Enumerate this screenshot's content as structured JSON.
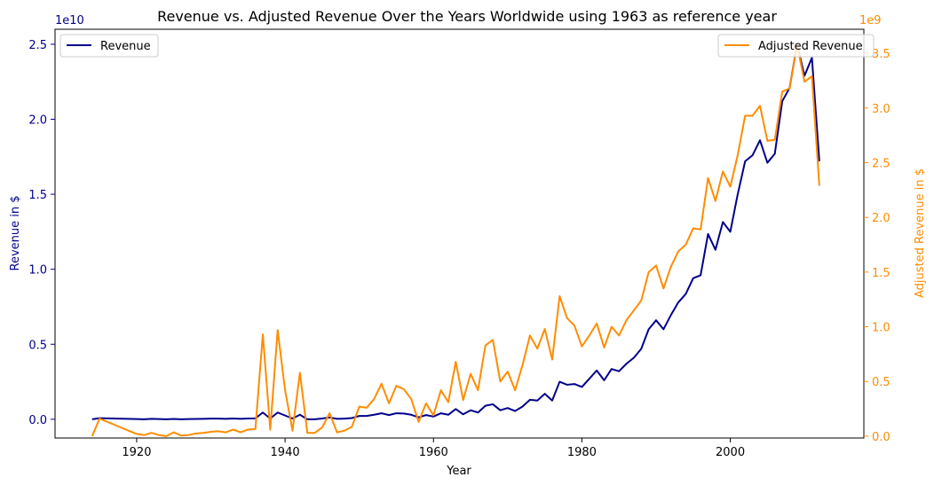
{
  "chart_data": {
    "type": "line",
    "title": "Revenue vs. Adjusted Revenue Over the Years Worldwide using 1963 as reference year",
    "xlabel": "Year",
    "ylabel_left": "Revenue in $",
    "ylabel_right": "Adjusted Revenue in $",
    "left_axis_offset": "1e10",
    "right_axis_offset": "1e9",
    "xlim": [
      1909,
      2018
    ],
    "ylim_left": [
      -0.125,
      2.6
    ],
    "ylim_right": [
      -0.017,
      3.72
    ],
    "x_ticks": [
      "1920",
      "1940",
      "1960",
      "1980",
      "2000"
    ],
    "y_ticks_left": [
      "0.0",
      "0.5",
      "1.0",
      "1.5",
      "2.0",
      "2.5"
    ],
    "y_ticks_right": [
      "0.0",
      "0.5",
      "1.0",
      "1.5",
      "2.0",
      "2.5",
      "3.0",
      "3.5"
    ],
    "grid": false,
    "colors": {
      "revenue": "#00008b",
      "adjusted": "#ff8c00",
      "axis": "#000000"
    },
    "legend": {
      "left": {
        "position": "upper-left",
        "label": "Revenue"
      },
      "right": {
        "position": "upper-right",
        "label": "Adjusted Revenue"
      }
    },
    "series": [
      {
        "name": "Revenue",
        "axis": "left",
        "x": [
          1914,
          1915,
          1920,
          1921,
          1922,
          1923,
          1924,
          1925,
          1926,
          1927,
          1928,
          1929,
          1930,
          1931,
          1932,
          1933,
          1934,
          1935,
          1936,
          1937,
          1938,
          1939,
          1940,
          1941,
          1942,
          1943,
          1944,
          1945,
          1946,
          1947,
          1948,
          1949,
          1950,
          1951,
          1952,
          1953,
          1954,
          1955,
          1956,
          1957,
          1958,
          1959,
          1960,
          1961,
          1962,
          1963,
          1964,
          1965,
          1966,
          1967,
          1968,
          1969,
          1970,
          1971,
          1972,
          1973,
          1974,
          1975,
          1976,
          1977,
          1978,
          1979,
          1980,
          1981,
          1982,
          1983,
          1984,
          1985,
          1986,
          1987,
          1988,
          1989,
          1990,
          1991,
          1992,
          1993,
          1994,
          1995,
          1996,
          1997,
          1998,
          1999,
          2000,
          2001,
          2002,
          2003,
          2004,
          2005,
          2006,
          2007,
          2008,
          2009,
          2010,
          2011,
          2012
        ],
        "values": [
          0.0,
          0.007,
          0.001,
          0.0,
          0.003,
          0.001,
          0.0,
          0.002,
          0.0,
          0.001,
          0.002,
          0.003,
          0.004,
          0.004,
          0.003,
          0.005,
          0.003,
          0.005,
          0.006,
          0.045,
          0.005,
          0.045,
          0.025,
          0.005,
          0.03,
          0.0,
          0.0,
          0.005,
          0.012,
          0.003,
          0.004,
          0.008,
          0.022,
          0.022,
          0.03,
          0.04,
          0.028,
          0.04,
          0.038,
          0.03,
          0.013,
          0.028,
          0.018,
          0.04,
          0.03,
          0.068,
          0.033,
          0.06,
          0.045,
          0.09,
          0.1,
          0.06,
          0.075,
          0.055,
          0.085,
          0.13,
          0.125,
          0.17,
          0.125,
          0.25,
          0.23,
          0.235,
          0.215,
          0.27,
          0.325,
          0.26,
          0.335,
          0.32,
          0.37,
          0.41,
          0.47,
          0.6,
          0.66,
          0.6,
          0.695,
          0.78,
          0.835,
          0.94,
          0.96,
          1.235,
          1.13,
          1.315,
          1.25,
          1.5,
          1.72,
          1.76,
          1.86,
          1.71,
          1.77,
          2.12,
          2.21,
          2.5,
          2.29,
          2.41,
          1.72
        ]
      },
      {
        "name": "Adjusted Revenue",
        "axis": "right",
        "x": [
          1914,
          1915,
          1920,
          1921,
          1922,
          1923,
          1924,
          1925,
          1926,
          1927,
          1928,
          1929,
          1930,
          1931,
          1932,
          1933,
          1934,
          1935,
          1936,
          1937,
          1938,
          1939,
          1940,
          1941,
          1942,
          1943,
          1944,
          1945,
          1946,
          1947,
          1948,
          1949,
          1950,
          1951,
          1952,
          1953,
          1954,
          1955,
          1956,
          1957,
          1958,
          1959,
          1960,
          1961,
          1962,
          1963,
          1964,
          1965,
          1966,
          1967,
          1968,
          1969,
          1970,
          1971,
          1972,
          1973,
          1974,
          1975,
          1976,
          1977,
          1978,
          1979,
          1980,
          1981,
          1982,
          1983,
          1984,
          1985,
          1986,
          1987,
          1988,
          1989,
          1990,
          1991,
          1992,
          1993,
          1994,
          1995,
          1996,
          1997,
          1998,
          1999,
          2000,
          2001,
          2002,
          2003,
          2004,
          2005,
          2006,
          2007,
          2008,
          2009,
          2010,
          2011,
          2012
        ],
        "values": [
          0.0,
          0.16,
          0.02,
          0.01,
          0.03,
          0.01,
          0.0,
          0.035,
          0.005,
          0.01,
          0.025,
          0.03,
          0.04,
          0.045,
          0.035,
          0.06,
          0.035,
          0.06,
          0.065,
          0.93,
          0.06,
          0.97,
          0.42,
          0.05,
          0.58,
          0.03,
          0.03,
          0.08,
          0.21,
          0.035,
          0.05,
          0.085,
          0.27,
          0.26,
          0.34,
          0.48,
          0.3,
          0.46,
          0.43,
          0.34,
          0.13,
          0.3,
          0.19,
          0.42,
          0.31,
          0.68,
          0.33,
          0.57,
          0.42,
          0.83,
          0.88,
          0.5,
          0.59,
          0.42,
          0.65,
          0.92,
          0.8,
          0.98,
          0.7,
          1.28,
          1.08,
          1.01,
          0.82,
          0.92,
          1.03,
          0.81,
          1.0,
          0.92,
          1.06,
          1.15,
          1.24,
          1.5,
          1.56,
          1.35,
          1.55,
          1.69,
          1.75,
          1.9,
          1.89,
          2.36,
          2.15,
          2.42,
          2.28,
          2.57,
          2.93,
          2.93,
          3.02,
          2.7,
          2.71,
          3.15,
          3.18,
          3.58,
          3.24,
          3.29,
          2.29
        ]
      }
    ]
  }
}
